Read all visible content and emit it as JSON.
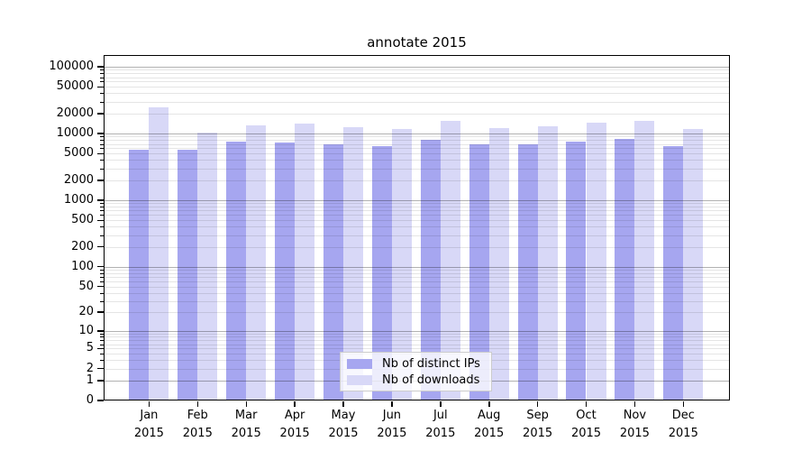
{
  "title": "annotate 2015",
  "chart_data": {
    "type": "bar",
    "title": "annotate 2015",
    "categories": [
      "Jan 2015",
      "Feb 2015",
      "Mar 2015",
      "Apr 2015",
      "May 2015",
      "Jun 2015",
      "Jul 2015",
      "Aug 2015",
      "Sep 2015",
      "Oct 2015",
      "Nov 2015",
      "Dec 2015"
    ],
    "series": [
      {
        "name": "Nb of distinct IPs",
        "color": "#a6a6f0",
        "values": [
          5700,
          5700,
          7600,
          7400,
          7000,
          6500,
          8100,
          6800,
          6800,
          7600,
          8200,
          6500
        ]
      },
      {
        "name": "Nb of downloads",
        "color": "#d8d8f7",
        "values": [
          24700,
          10200,
          13200,
          14200,
          12400,
          11700,
          15300,
          12000,
          12900,
          14500,
          15600,
          11800
        ]
      }
    ],
    "y_axis": {
      "scale": "log10(1+y)",
      "tick_values": [
        0,
        1,
        2,
        5,
        10,
        20,
        50,
        100,
        200,
        500,
        1000,
        2000,
        5000,
        10000,
        20000,
        50000,
        100000
      ],
      "ylim": [
        0,
        150000
      ]
    },
    "xlabel": "",
    "ylabel": "",
    "grid": "both",
    "legend_position": "lower center"
  },
  "colors": {
    "axis": "#000000",
    "major_grid": "#b3b3b3",
    "minor_grid": "#e6e6e6",
    "legend_border": "#cccccc",
    "background": "#ffffff"
  }
}
